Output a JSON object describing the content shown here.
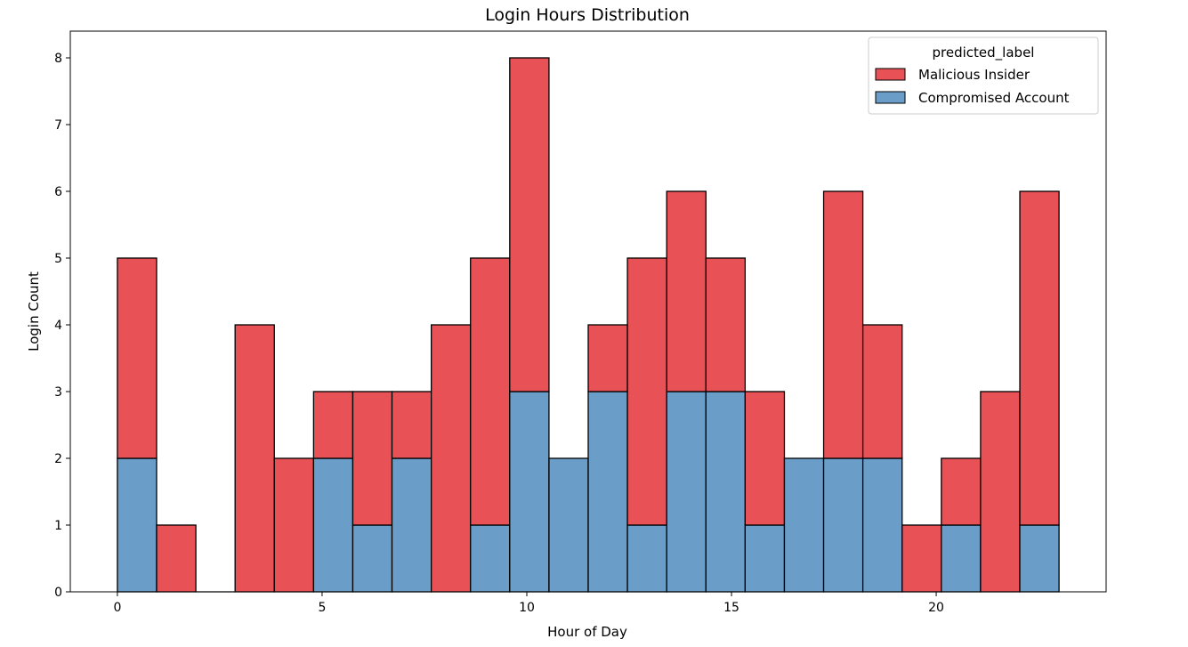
{
  "chart_data": {
    "type": "bar",
    "stacked": true,
    "title": "Login Hours Distribution",
    "xlabel": "Hour of Day",
    "ylabel": "Login Count",
    "xlim": [
      -1.15,
      24.15
    ],
    "ylim": [
      0,
      8.4
    ],
    "xticks": [
      0,
      5,
      10,
      15,
      20
    ],
    "yticks": [
      0,
      1,
      2,
      3,
      4,
      5,
      6,
      7,
      8
    ],
    "bin_edges": [
      0,
      0.958,
      1.917,
      2.875,
      3.833,
      4.792,
      5.75,
      6.708,
      7.667,
      8.625,
      9.583,
      10.542,
      11.5,
      12.458,
      13.417,
      14.375,
      15.333,
      16.292,
      17.25,
      18.208,
      19.167,
      20.125,
      21.083,
      22.042,
      23
    ],
    "legend": {
      "title": "predicted_label",
      "placement": "upper right"
    },
    "series": [
      {
        "name": "Compromised Account",
        "color": "#6a9ec8",
        "values": [
          2,
          0,
          0,
          0,
          0,
          2,
          1,
          2,
          0,
          1,
          3,
          2,
          3,
          1,
          3,
          3,
          1,
          2,
          2,
          2,
          0,
          1,
          0,
          1
        ]
      },
      {
        "name": "Malicious Insider",
        "color": "#e85156",
        "values": [
          3,
          1,
          0,
          4,
          2,
          1,
          2,
          1,
          4,
          4,
          5,
          0,
          1,
          4,
          3,
          2,
          2,
          0,
          4,
          2,
          1,
          1,
          3,
          5
        ]
      }
    ],
    "legend_order": [
      "Malicious Insider",
      "Compromised Account"
    ],
    "grid": false
  }
}
